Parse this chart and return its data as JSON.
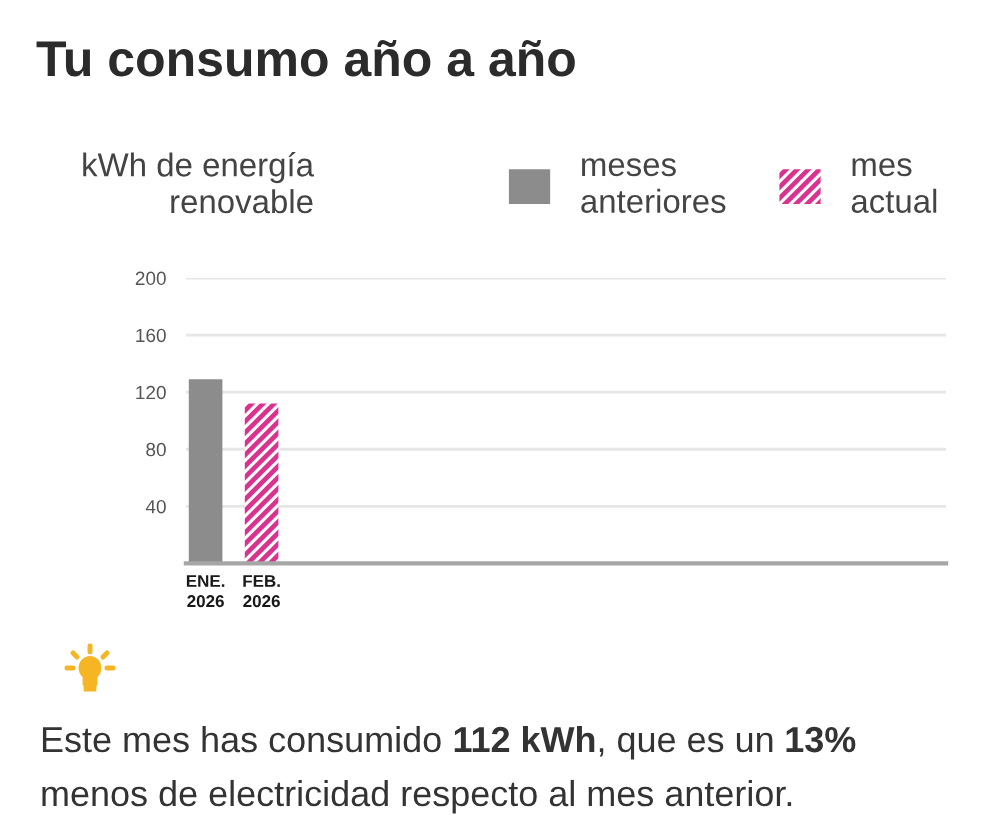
{
  "chart_data": {
    "type": "bar",
    "title": "Tu consumo año a año",
    "ylabel": "kWh de energía\nrenovable",
    "categories": [
      "ENE.\n2026",
      "FEB.\n2026"
    ],
    "series": [
      {
        "name": "meses\nanteriores",
        "color": "#8c8c8c",
        "values": [
          129,
          null
        ]
      },
      {
        "name": "mes\nactual",
        "color": "#d9338f",
        "values": [
          null,
          112
        ]
      }
    ],
    "ylim": [
      0,
      200
    ],
    "yticks": [
      40,
      80,
      120,
      160,
      200
    ],
    "grid": "y",
    "legend": "top right",
    "annotations": [
      "Este mes has consumido 112 kWh, que es un 13% menos de electricidad respecto al mes anterior."
    ]
  }
}
